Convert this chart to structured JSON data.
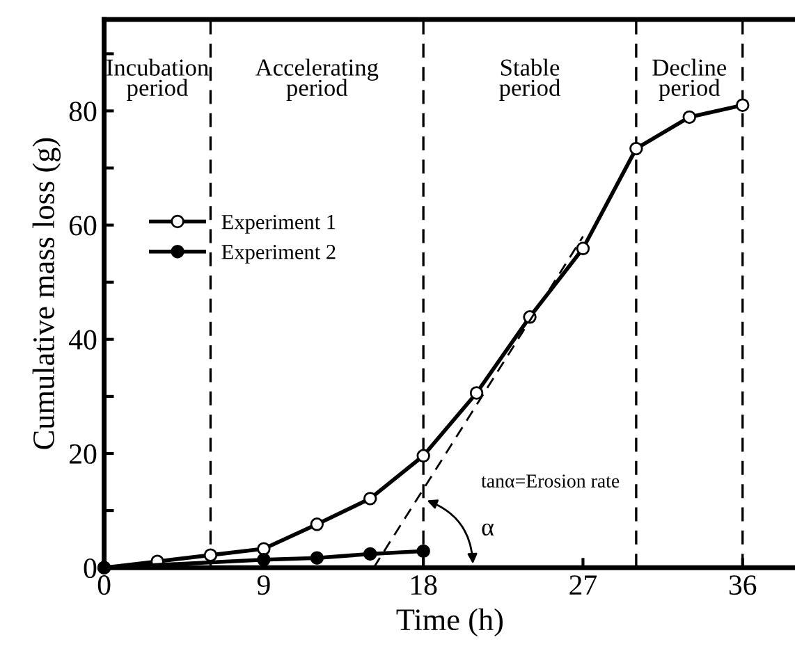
{
  "chart_data": {
    "type": "line",
    "xlabel": "Time (h)",
    "ylabel": "Cumulative mass loss (g)",
    "xlim": [
      0,
      39
    ],
    "ylim": [
      0,
      96
    ],
    "xticks": [
      0,
      9,
      18,
      27,
      36
    ],
    "yticks": [
      0,
      {
        "value": 10,
        "label": null
      },
      20,
      {
        "value": 30,
        "label": null
      },
      40,
      {
        "value": 50,
        "label": null
      },
      60,
      {
        "value": 70,
        "label": null
      },
      80,
      {
        "value": 90,
        "label": null
      }
    ],
    "grid": false,
    "legend": "left",
    "line_style": "solid",
    "series": [
      {
        "name": "Experiment 1",
        "color": "#000000",
        "marker": "circle",
        "x": [
          0,
          3,
          6,
          9,
          12,
          15,
          18,
          21,
          24,
          27,
          30,
          33,
          36
        ],
        "values": [
          0,
          1.1,
          2.2,
          3.3,
          7.6,
          12.1,
          19.6,
          30.6,
          43.9,
          55.9,
          73.4,
          78.9,
          81.0
        ]
      },
      {
        "name": "Experiment 2",
        "color": "#000000",
        "marker": "circle",
        "x": [
          0,
          9,
          12,
          15,
          18
        ],
        "values": [
          0,
          1.4,
          1.7,
          2.4,
          2.9
        ]
      },
      {
        "color": "#000000",
        "marker": "none",
        "line_style": "dashed",
        "x": [
          15.2,
          27
        ],
        "values": [
          0,
          58
        ]
      }
    ],
    "ref_lines": [
      {
        "axis": "x",
        "value": 6,
        "line_style": "dashed"
      },
      {
        "axis": "x",
        "value": 18,
        "line_style": "dashed"
      },
      {
        "axis": "x",
        "value": 30,
        "line_style": "dashed"
      },
      {
        "axis": "x",
        "value": 36,
        "line_style": "dashed"
      }
    ],
    "annotations": [
      "Incubation\nperiod",
      "Accelerating\nperiod",
      "Stable\nperiod",
      "Decline\nperiod",
      "tanα=Erosion rate",
      "α"
    ]
  }
}
